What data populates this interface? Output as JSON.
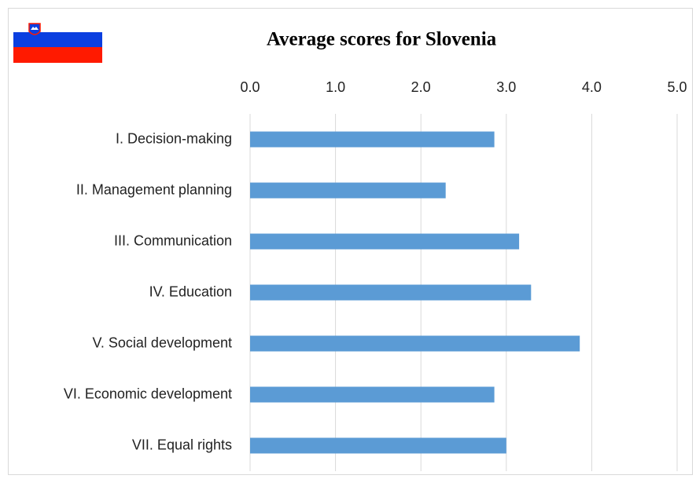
{
  "chart_data": {
    "type": "bar",
    "orientation": "horizontal",
    "title": "Average scores for Slovenia",
    "categories": [
      "I. Decision-making",
      "II. Management planning",
      "III. Communication",
      "IV. Education",
      "V. Social development",
      "VI. Economic development",
      "VII. Equal rights"
    ],
    "values": [
      2.86,
      2.29,
      3.15,
      3.29,
      3.86,
      2.86,
      3.0
    ],
    "color": "#5b9bd5",
    "xlim": [
      0,
      5
    ],
    "xticks": [
      {
        "value": 0,
        "label": "0.0"
      },
      {
        "value": 1,
        "label": "1.0"
      },
      {
        "value": 2,
        "label": "2.0"
      },
      {
        "value": 3,
        "label": "3.0"
      },
      {
        "value": 4,
        "label": "4.0"
      },
      {
        "value": 5,
        "label": "5.0"
      }
    ],
    "grid": true,
    "x_axis_position": "top"
  }
}
